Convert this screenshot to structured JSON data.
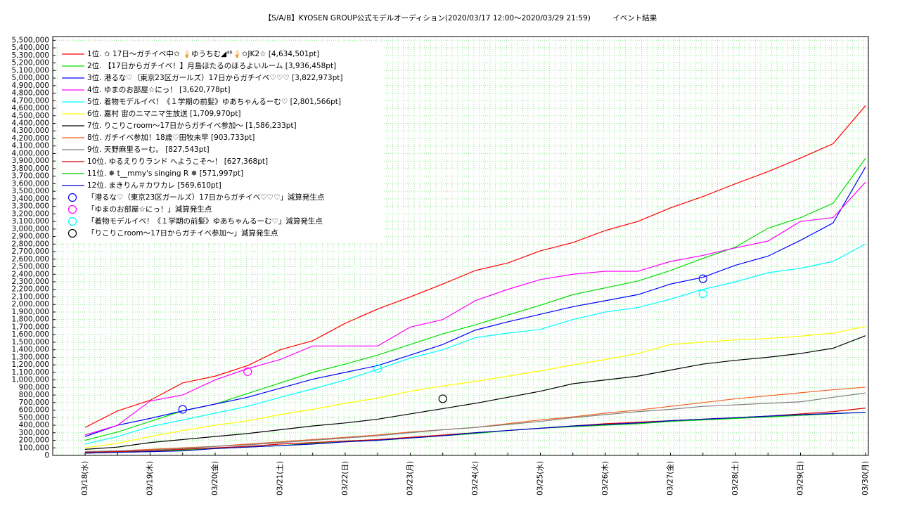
{
  "chart_data": {
    "type": "line",
    "title": "【S/A/B】KYOSEN GROUP公式モデルオーディション(2020/03/17 12:00〜2020/03/29 21:59)　　　イベント結果",
    "x": [
      "03/18(水)",
      null,
      "03/19(木)",
      null,
      "03/20(金)",
      null,
      "03/21(土)",
      null,
      "03/22(日)",
      null,
      "03/23(月)",
      null,
      "03/24(火)",
      null,
      "03/25(水)",
      null,
      "03/26(木)",
      null,
      "03/27(金)",
      null,
      "03/28(土)",
      null,
      "03/29(日)",
      null,
      "03/30(月)"
    ],
    "ylim": [
      0,
      5550000
    ],
    "yticks": [
      0,
      {
        "value": 100000,
        "label": "100,000"
      },
      {
        "value": 200000,
        "label": "200,000"
      },
      {
        "value": 300000,
        "label": "300,000"
      },
      {
        "value": 400000,
        "label": "400,000"
      },
      {
        "value": 500000,
        "label": "500,000"
      },
      {
        "value": 600000,
        "label": "600,000"
      },
      {
        "value": 700000,
        "label": "700,000"
      },
      {
        "value": 800000,
        "label": "800,000"
      },
      {
        "value": 900000,
        "label": "900,000"
      },
      {
        "value": 1000000,
        "label": "1,000,000"
      },
      {
        "value": 1100000,
        "label": "1,100,000"
      },
      {
        "value": 1200000,
        "label": "1,200,000"
      },
      {
        "value": 1300000,
        "label": "1,300,000"
      },
      {
        "value": 1400000,
        "label": "1,400,000"
      },
      {
        "value": 1500000,
        "label": "1,500,000"
      },
      {
        "value": 1600000,
        "label": "1,600,000"
      },
      {
        "value": 1700000,
        "label": "1,700,000"
      },
      {
        "value": 1800000,
        "label": "1,800,000"
      },
      {
        "value": 1900000,
        "label": "1,900,000"
      },
      {
        "value": 2000000,
        "label": "2,000,000"
      },
      {
        "value": 2100000,
        "label": "2,100,000"
      },
      {
        "value": 2200000,
        "label": "2,200,000"
      },
      {
        "value": 2300000,
        "label": "2,300,000"
      },
      {
        "value": 2400000,
        "label": "2,400,000"
      },
      {
        "value": 2500000,
        "label": "2,500,000"
      },
      {
        "value": 2600000,
        "label": "2,600,000"
      },
      {
        "value": 2700000,
        "label": "2,700,000"
      },
      {
        "value": 2800000,
        "label": "2,800,000"
      },
      {
        "value": 2900000,
        "label": "2,900,000"
      },
      {
        "value": 3000000,
        "label": "3,000,000"
      },
      {
        "value": 3100000,
        "label": "3,100,000"
      },
      {
        "value": 3200000,
        "label": "3,200,000"
      },
      {
        "value": 3300000,
        "label": "3,300,000"
      },
      {
        "value": 3400000,
        "label": "3,400,000"
      },
      {
        "value": 3500000,
        "label": "3,500,000"
      },
      {
        "value": 3600000,
        "label": "3,600,000"
      },
      {
        "value": 3700000,
        "label": "3,700,000"
      },
      {
        "value": 3800000,
        "label": "3,800,000"
      },
      {
        "value": 3900000,
        "label": "3,900,000"
      },
      {
        "value": 4000000,
        "label": "4,000,000"
      },
      {
        "value": 4100000,
        "label": "4,100,000"
      },
      {
        "value": 4200000,
        "label": "4,200,000"
      },
      {
        "value": 4300000,
        "label": "4,300,000"
      },
      {
        "value": 4400000,
        "label": "4,400,000"
      },
      {
        "value": 4500000,
        "label": "4,500,000"
      },
      {
        "value": 4600000,
        "label": "4,600,000"
      },
      {
        "value": 4700000,
        "label": "4,700,000"
      },
      {
        "value": 4800000,
        "label": "4,800,000"
      },
      {
        "value": 4900000,
        "label": "4,900,000"
      },
      {
        "value": 5000000,
        "label": "5,000,000"
      },
      {
        "value": 5100000,
        "label": "5,100,000"
      },
      {
        "value": 5200000,
        "label": "5,200,000"
      },
      {
        "value": 5300000,
        "label": "5,300,000"
      },
      {
        "value": 5400000,
        "label": "5,400,000"
      },
      {
        "value": 5500000,
        "label": "5,500,000"
      }
    ],
    "grid": true,
    "grid_color": "#9ee89e",
    "legend": "upper left",
    "series": [
      {
        "name": "1位. ✩ 17日〜ガチイベ中✩ 🍦ゆうちむ◢⁴⁶🍦✩JK2☆ [4,634,501pt]",
        "color": "#ff0000",
        "values": [
          370000,
          590000,
          730000,
          960000,
          1050000,
          1190000,
          1400000,
          1520000,
          1750000,
          1940000,
          2100000,
          2270000,
          2450000,
          2550000,
          2710000,
          2820000,
          2980000,
          3100000,
          3280000,
          3430000,
          3600000,
          3760000,
          3940000,
          4130000,
          4634501
        ]
      },
      {
        "name": "2位. 【17日からガチイベ！】月島ほたるのほろよいルーム [3,936,458pt]",
        "color": "#00dd00",
        "values": [
          200000,
          310000,
          450000,
          590000,
          680000,
          820000,
          960000,
          1100000,
          1210000,
          1330000,
          1470000,
          1610000,
          1730000,
          1860000,
          1990000,
          2130000,
          2220000,
          2310000,
          2450000,
          2610000,
          2760000,
          3010000,
          3150000,
          3340000,
          3936458
        ]
      },
      {
        "name": "3位. 港るな♡（東京23区ガールズ）17日からガチイベ♡♡♡ [3,822,973pt]",
        "color": "#0000ff",
        "values": [
          250000,
          400000,
          490000,
          590000,
          680000,
          770000,
          890000,
          1010000,
          1100000,
          1190000,
          1330000,
          1470000,
          1660000,
          1770000,
          1870000,
          1970000,
          2050000,
          2130000,
          2270000,
          2360000,
          2520000,
          2640000,
          2850000,
          3080000,
          3822973
        ]
      },
      {
        "name": "4位. ゆまのお部屋☆にっ！ [3,620,778pt]",
        "color": "#ff00ff",
        "values": [
          270000,
          400000,
          720000,
          800000,
          1000000,
          1150000,
          1270000,
          1450000,
          1450000,
          1450000,
          1700000,
          1800000,
          2050000,
          2200000,
          2330000,
          2400000,
          2440000,
          2440000,
          2570000,
          2650000,
          2750000,
          2840000,
          3100000,
          3150000,
          3620778
        ]
      },
      {
        "name": "5位. 着物モデルイベ！《１学期の前髪》ゆあちゃんるーむ♡ [2,801,566pt]",
        "color": "#00ffff",
        "values": [
          150000,
          250000,
          380000,
          470000,
          560000,
          650000,
          770000,
          880000,
          1000000,
          1140000,
          1290000,
          1400000,
          1560000,
          1620000,
          1670000,
          1800000,
          1900000,
          1960000,
          2070000,
          2200000,
          2300000,
          2420000,
          2480000,
          2570000,
          2801566
        ]
      },
      {
        "name": "6位. 嘉村 宙のニマニマ生放送 [1,709,970pt]",
        "color": "#ffff00",
        "values": [
          100000,
          160000,
          250000,
          330000,
          400000,
          460000,
          540000,
          610000,
          690000,
          760000,
          850000,
          920000,
          980000,
          1050000,
          1120000,
          1200000,
          1270000,
          1350000,
          1470000,
          1500000,
          1530000,
          1550000,
          1580000,
          1620000,
          1709970
        ]
      },
      {
        "name": "7位. りこりこroom〜17日からガチイベ参加〜 [1,586,233pt]",
        "color": "#000000",
        "values": [
          80000,
          110000,
          170000,
          210000,
          250000,
          290000,
          340000,
          390000,
          430000,
          480000,
          550000,
          620000,
          690000,
          770000,
          850000,
          950000,
          1000000,
          1050000,
          1130000,
          1210000,
          1260000,
          1300000,
          1350000,
          1420000,
          1586233
        ]
      },
      {
        "name": "8位. ガチイベ参加！18歳♡田牧未早 [903,733pt]",
        "color": "#f06020",
        "values": [
          50000,
          60000,
          80000,
          100000,
          120000,
          150000,
          180000,
          210000,
          240000,
          270000,
          310000,
          340000,
          370000,
          420000,
          470000,
          510000,
          560000,
          600000,
          650000,
          700000,
          750000,
          790000,
          830000,
          870000,
          903733
        ]
      },
      {
        "name": "9位. 天野麻里るーむ。 [827,543pt]",
        "color": "#808080",
        "values": [
          50000,
          60000,
          70000,
          90000,
          120000,
          140000,
          170000,
          200000,
          230000,
          260000,
          300000,
          340000,
          370000,
          410000,
          450000,
          500000,
          540000,
          580000,
          610000,
          650000,
          670000,
          690000,
          710000,
          770000,
          827543
        ]
      },
      {
        "name": "10位. ゆるえりりランド へようこそ〜！ [627,368pt]",
        "color": "#dd0000",
        "values": [
          40000,
          50000,
          60000,
          80000,
          100000,
          120000,
          150000,
          170000,
          190000,
          210000,
          240000,
          270000,
          300000,
          330000,
          360000,
          390000,
          420000,
          440000,
          460000,
          480000,
          500000,
          520000,
          550000,
          580000,
          627368
        ]
      },
      {
        "name": "11位. ❅ t__mmy's singing R ❅ [571,997pt]",
        "color": "#00cc00",
        "values": [
          30000,
          40000,
          50000,
          70000,
          90000,
          110000,
          130000,
          160000,
          180000,
          200000,
          230000,
          260000,
          290000,
          330000,
          360000,
          380000,
          400000,
          420000,
          450000,
          470000,
          490000,
          510000,
          530000,
          550000,
          571997
        ]
      },
      {
        "name": "12位. まきりん＃カワカレ [569,610pt]",
        "color": "#0000cc",
        "values": [
          30000,
          40000,
          50000,
          60000,
          90000,
          110000,
          130000,
          150000,
          180000,
          200000,
          230000,
          260000,
          300000,
          330000,
          360000,
          390000,
          410000,
          430000,
          460000,
          480000,
          500000,
          520000,
          540000,
          555000,
          569610
        ]
      },
      {
        "name": "「港るな♡（東京23区ガールズ）17日からガチイベ♡♡♡」減算発生点",
        "color": "#0000ff",
        "marker": "circle",
        "values": [
          null,
          null,
          null,
          610000,
          null,
          null,
          null,
          null,
          null,
          null,
          null,
          null,
          null,
          null,
          null,
          null,
          null,
          null,
          null,
          2340000,
          null,
          null,
          null,
          null,
          null
        ]
      },
      {
        "name": "「ゆまのお部屋☆にっ！」減算発生点",
        "color": "#ff00ff",
        "marker": "circle",
        "values": [
          null,
          null,
          null,
          null,
          null,
          1110000,
          null,
          null,
          null,
          null,
          null,
          null,
          null,
          null,
          null,
          null,
          null,
          null,
          null,
          null,
          null,
          null,
          null,
          null,
          null
        ]
      },
      {
        "name": "「着物モデルイベ！《１学期の前髪》ゆあちゃんるーむ♡」減算発生点",
        "color": "#00ffff",
        "marker": "circle",
        "values": [
          null,
          null,
          null,
          null,
          null,
          null,
          null,
          null,
          null,
          1150000,
          null,
          null,
          null,
          null,
          null,
          null,
          null,
          null,
          null,
          2140000,
          null,
          null,
          null,
          null,
          null
        ]
      },
      {
        "name": "「りこりこroom〜17日からガチイベ参加〜」減算発生点",
        "color": "#000000",
        "marker": "circle",
        "values": [
          null,
          null,
          null,
          null,
          null,
          null,
          null,
          null,
          null,
          null,
          null,
          750000,
          null,
          null,
          null,
          null,
          null,
          null,
          null,
          null,
          null,
          null,
          null,
          null,
          null
        ]
      }
    ]
  }
}
